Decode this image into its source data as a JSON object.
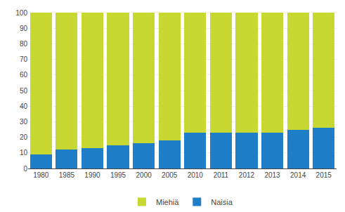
{
  "chart_data": {
    "type": "bar",
    "stacked": true,
    "categories": [
      "1980",
      "1985",
      "1990",
      "1995",
      "2000",
      "2005",
      "2010",
      "2011",
      "2012",
      "2013",
      "2014",
      "2015"
    ],
    "series": [
      {
        "name": "Naisia",
        "color": "#1e7ec8",
        "values": [
          9,
          12,
          13,
          15,
          16,
          18,
          23,
          23,
          23,
          23,
          25,
          26
        ]
      },
      {
        "name": "Miehiä",
        "color": "#c8d832",
        "values": [
          91,
          88,
          87,
          85,
          84,
          82,
          77,
          77,
          77,
          77,
          75,
          74
        ]
      }
    ],
    "ylim": [
      0,
      100
    ],
    "yticks": [
      0,
      10,
      20,
      30,
      40,
      50,
      60,
      70,
      80,
      90,
      100
    ],
    "grid": true,
    "legend": "bottom"
  }
}
